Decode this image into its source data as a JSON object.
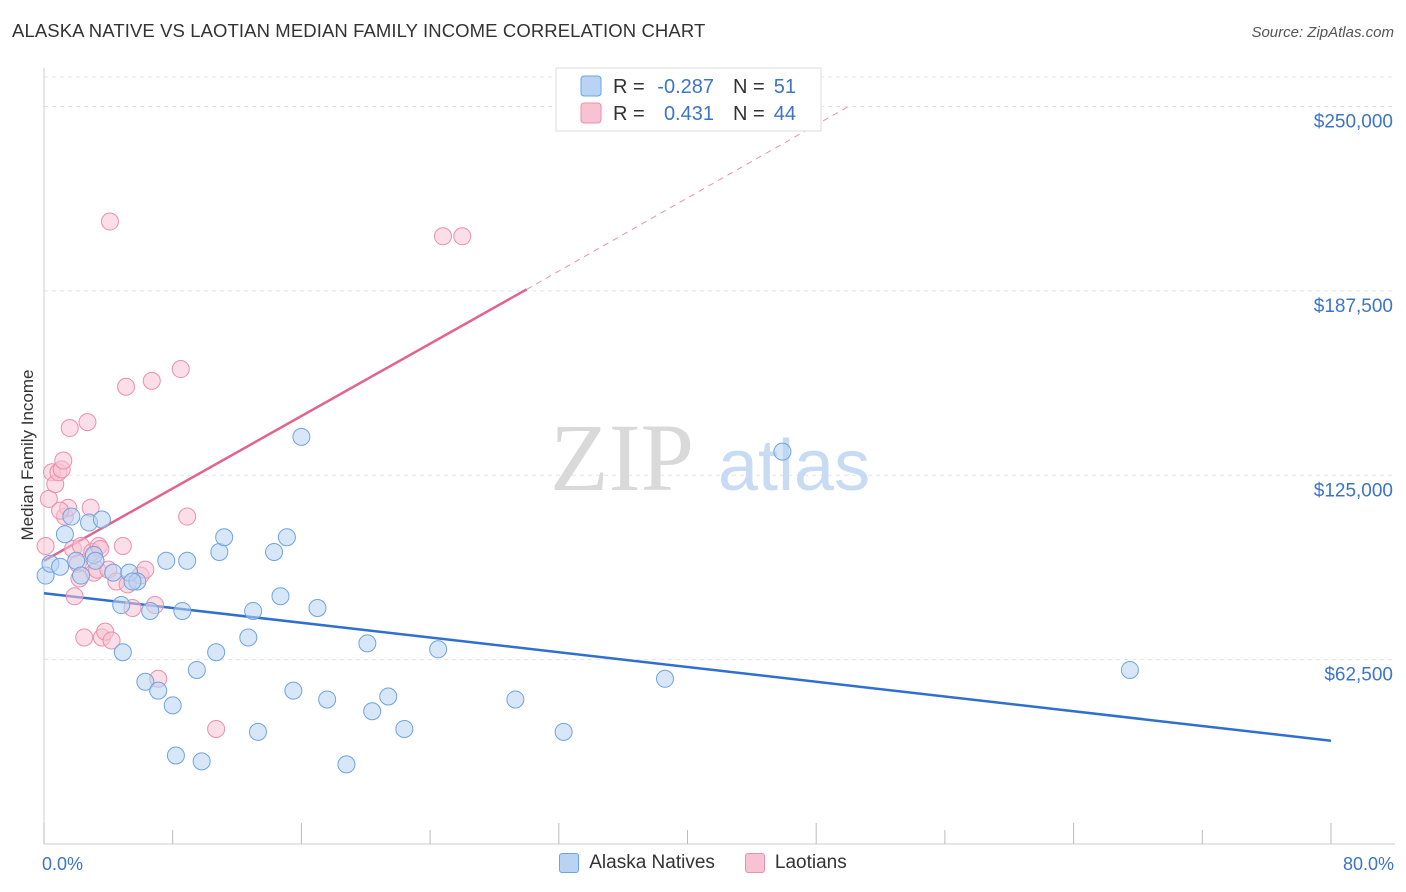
{
  "title": "ALASKA NATIVE VS LAOTIAN MEDIAN FAMILY INCOME CORRELATION CHART",
  "source": "Source: ZipAtlas.com",
  "watermark": {
    "zip": "ZIP",
    "atlas": "atlas"
  },
  "colors": {
    "blue_fill": "#b8d3f3",
    "blue_stroke": "#6fa3e0",
    "blue_line": "#2f6fd0",
    "pink_fill": "#f7c3d3",
    "pink_stroke": "#eb8fac",
    "pink_line": "#e0648c",
    "tick_text": "#3b74c9"
  },
  "legend": {
    "blue": {
      "r_label": "R =",
      "r_value": "-0.287",
      "n_label": "N =",
      "n_value": "51"
    },
    "pink": {
      "r_label": "R =",
      "r_value": "0.431",
      "n_label": "N =",
      "n_value": "44"
    }
  },
  "bottom_legend": {
    "blue_label": "Alaska Natives",
    "pink_label": "Laotians"
  },
  "chart_data": {
    "type": "scatter",
    "title": "ALASKA NATIVE VS LAOTIAN MEDIAN FAMILY INCOME CORRELATION CHART",
    "xlabel": "",
    "ylabel": "Median Family Income",
    "xlim": [
      0,
      80
    ],
    "ylim": [
      0,
      260000
    ],
    "x_tick_labels": [
      "0.0%",
      "80.0%"
    ],
    "y_ticks": [
      62500,
      125000,
      187500,
      250000
    ],
    "y_tick_labels": [
      "$62,500",
      "$125,000",
      "$187,500",
      "$250,000"
    ],
    "series": [
      {
        "name": "Alaska Natives",
        "r": -0.287,
        "n": 51,
        "trend": {
          "x": [
            0,
            80
          ],
          "y": [
            85000,
            35000
          ]
        },
        "points": [
          [
            0.1,
            91000
          ],
          [
            0.4,
            95000
          ],
          [
            1.0,
            94000
          ],
          [
            1.3,
            105000
          ],
          [
            1.7,
            111000
          ],
          [
            2.0,
            96000
          ],
          [
            2.3,
            91000
          ],
          [
            2.8,
            109000
          ],
          [
            3.1,
            98000
          ],
          [
            3.2,
            96000
          ],
          [
            3.6,
            110000
          ],
          [
            4.3,
            92000
          ],
          [
            4.8,
            81000
          ],
          [
            4.9,
            65000
          ],
          [
            5.3,
            92000
          ],
          [
            5.8,
            89000
          ],
          [
            6.3,
            55000
          ],
          [
            6.6,
            79000
          ],
          [
            7.1,
            52000
          ],
          [
            7.6,
            96000
          ],
          [
            8.0,
            47000
          ],
          [
            8.2,
            30000
          ],
          [
            8.6,
            79000
          ],
          [
            8.9,
            96000
          ],
          [
            9.5,
            59000
          ],
          [
            9.8,
            28000
          ],
          [
            10.7,
            65000
          ],
          [
            10.9,
            99000
          ],
          [
            11.2,
            104000
          ],
          [
            12.7,
            70000
          ],
          [
            13.0,
            79000
          ],
          [
            13.3,
            38000
          ],
          [
            14.3,
            99000
          ],
          [
            14.7,
            84000
          ],
          [
            15.1,
            104000
          ],
          [
            15.5,
            52000
          ],
          [
            16.0,
            138000
          ],
          [
            17.0,
            80000
          ],
          [
            17.6,
            49000
          ],
          [
            18.8,
            27000
          ],
          [
            20.1,
            68000
          ],
          [
            20.4,
            45000
          ],
          [
            21.4,
            50000
          ],
          [
            22.4,
            39000
          ],
          [
            24.5,
            66000
          ],
          [
            29.3,
            49000
          ],
          [
            32.3,
            38000
          ],
          [
            38.6,
            56000
          ],
          [
            45.9,
            133000
          ],
          [
            67.5,
            59000
          ],
          [
            5.5,
            89000
          ]
        ]
      },
      {
        "name": "Laotians",
        "r": 0.431,
        "n": 44,
        "trend": {
          "x": [
            0,
            30
          ],
          "y": [
            96000,
            188000
          ]
        },
        "trend_dashed": {
          "x": [
            30,
            50
          ],
          "y": [
            188000,
            250000
          ]
        },
        "points": [
          [
            0.1,
            101000
          ],
          [
            0.3,
            117000
          ],
          [
            0.5,
            126000
          ],
          [
            0.7,
            122000
          ],
          [
            0.9,
            126000
          ],
          [
            1.1,
            127000
          ],
          [
            1.2,
            130000
          ],
          [
            1.3,
            111000
          ],
          [
            1.5,
            114000
          ],
          [
            1.6,
            141000
          ],
          [
            1.8,
            100000
          ],
          [
            1.9,
            84000
          ],
          [
            2.1,
            95000
          ],
          [
            2.3,
            101000
          ],
          [
            2.5,
            70000
          ],
          [
            2.7,
            143000
          ],
          [
            2.9,
            114000
          ],
          [
            3.0,
            99000
          ],
          [
            3.1,
            92000
          ],
          [
            3.3,
            93000
          ],
          [
            3.4,
            101000
          ],
          [
            3.6,
            70000
          ],
          [
            3.8,
            72000
          ],
          [
            4.0,
            93000
          ],
          [
            4.2,
            69000
          ],
          [
            4.5,
            89000
          ],
          [
            4.9,
            101000
          ],
          [
            5.2,
            88000
          ],
          [
            5.5,
            80000
          ],
          [
            6.0,
            91000
          ],
          [
            6.3,
            93000
          ],
          [
            4.1,
            211000
          ],
          [
            5.1,
            155000
          ],
          [
            6.7,
            157000
          ],
          [
            6.9,
            81000
          ],
          [
            7.1,
            56000
          ],
          [
            8.5,
            161000
          ],
          [
            8.9,
            111000
          ],
          [
            10.7,
            39000
          ],
          [
            24.8,
            206000
          ],
          [
            26.0,
            206000
          ],
          [
            3.5,
            100000
          ],
          [
            2.2,
            90000
          ],
          [
            1.0,
            113000
          ]
        ]
      }
    ]
  }
}
